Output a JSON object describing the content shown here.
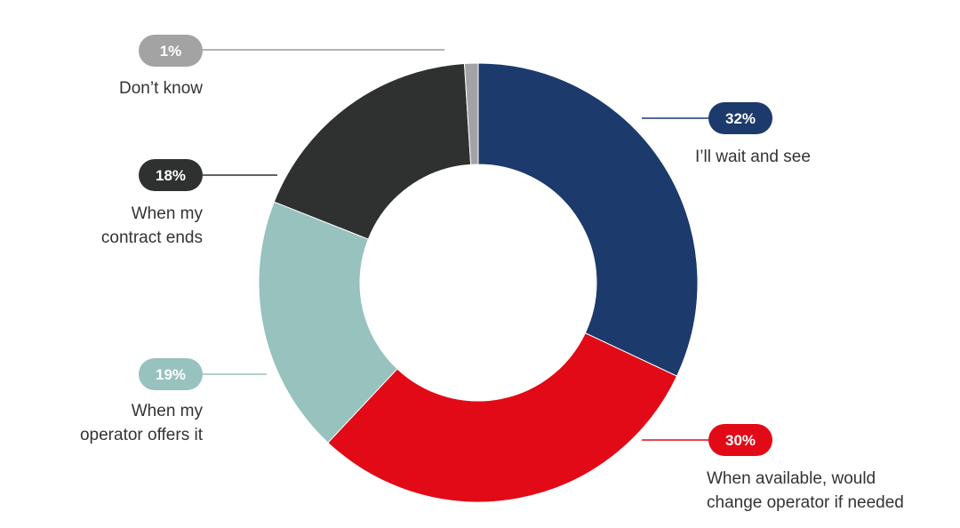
{
  "chart_data": {
    "type": "pie",
    "donut": true,
    "legend": "none",
    "slices": [
      {
        "label_lines": [
          "I’ll wait and see"
        ],
        "value": 32,
        "display": "32%",
        "color": "#1c3a6b",
        "pill_color": "#1c3a6b",
        "pill_text_color": "#ffffff"
      },
      {
        "label_lines": [
          "When available, would",
          "change operator if needed"
        ],
        "value": 30,
        "display": "30%",
        "color": "#e10a16",
        "pill_color": "#e10a16",
        "pill_text_color": "#ffffff"
      },
      {
        "label_lines": [
          "When my",
          "operator offers it"
        ],
        "value": 19,
        "display": "19%",
        "color": "#97c2be",
        "pill_color": "#97c2be",
        "pill_text_color": "#ffffff"
      },
      {
        "label_lines": [
          "When my",
          "contract ends"
        ],
        "value": 18,
        "display": "18%",
        "color": "#2f3030",
        "pill_color": "#2f3030",
        "pill_text_color": "#ffffff"
      },
      {
        "label_lines": [
          "Don’t know"
        ],
        "value": 1,
        "display": "1%",
        "color": "#a3a3a3",
        "pill_color": "#a3a3a3",
        "pill_text_color": "#ffffff"
      }
    ]
  }
}
